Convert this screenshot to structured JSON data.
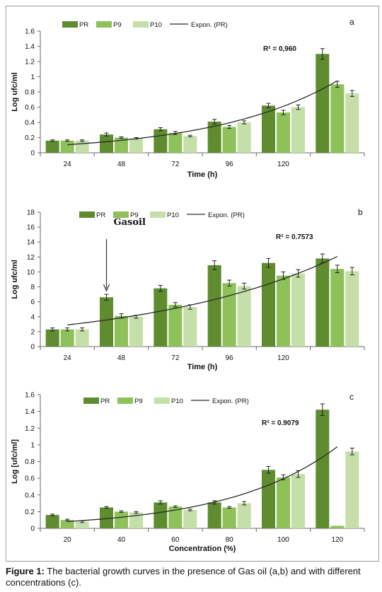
{
  "caption": {
    "label": "Figure 1:",
    "text": " The bacterial growth curves in the presence of Gas oil (a,b) and with different concentrations (c)."
  },
  "colors": {
    "PR": "#5e8c2e",
    "P9": "#8fc15a",
    "P10": "#c6dfa8",
    "trend": "#2b2b2b",
    "axis": "#6a6a6a"
  },
  "chart_data": [
    {
      "type": "bar",
      "panel": "a",
      "xlabel": "Time  (h)",
      "ylabel": "Log ufc/ml",
      "ylim": [
        0,
        1.6
      ],
      "yticks": [
        "0",
        "0.2",
        "0.4",
        "0.6",
        "0.8",
        "1",
        "1.2",
        "1.4",
        "1.6"
      ],
      "categories": [
        "24",
        "48",
        "72",
        "96",
        "120",
        ""
      ],
      "legend": [
        "PR",
        "P9",
        "P10",
        "Expon.  (PR)"
      ],
      "legend_position": "top",
      "series": [
        {
          "name": "PR",
          "values": [
            0.16,
            0.24,
            0.31,
            0.41,
            0.62,
            1.3
          ],
          "errors": [
            0.01,
            0.02,
            0.02,
            0.03,
            0.03,
            0.07
          ]
        },
        {
          "name": "P9",
          "values": [
            0.16,
            0.2,
            0.26,
            0.34,
            0.53,
            0.9
          ],
          "errors": [
            0.01,
            0.01,
            0.02,
            0.02,
            0.03,
            0.04
          ]
        },
        {
          "name": "P10",
          "values": [
            0.16,
            0.19,
            0.22,
            0.4,
            0.6,
            0.78
          ],
          "errors": [
            0.01,
            0.01,
            0.01,
            0.02,
            0.03,
            0.04
          ]
        }
      ],
      "trendline": {
        "type": "exponential",
        "series": "Expon.  (PR)",
        "r2_label": "R² = 0,960",
        "a": 0.106,
        "b": 0.438
      },
      "annotations": []
    },
    {
      "type": "bar",
      "panel": "b",
      "xlabel": "Time  (h)",
      "ylabel": "Log ufc/ml",
      "ylim": [
        0,
        18
      ],
      "yticks": [
        "0",
        "2",
        "4",
        "6",
        "8",
        "10",
        "12",
        "14",
        "16",
        "18"
      ],
      "categories": [
        "24",
        "48",
        "72",
        "96",
        "120",
        ""
      ],
      "legend": [
        "PR",
        "P9",
        "P10",
        "Expon.  (PR)"
      ],
      "legend_position": "top",
      "series": [
        {
          "name": "PR",
          "values": [
            2.3,
            6.6,
            7.8,
            10.9,
            11.2,
            11.8
          ],
          "errors": [
            0.2,
            0.4,
            0.4,
            0.6,
            0.6,
            0.6
          ]
        },
        {
          "name": "P9",
          "values": [
            2.3,
            4.1,
            5.6,
            8.5,
            9.5,
            10.4
          ],
          "errors": [
            0.2,
            0.3,
            0.3,
            0.4,
            0.5,
            0.5
          ]
        },
        {
          "name": "P10",
          "values": [
            2.3,
            4.0,
            5.3,
            8.1,
            9.8,
            10.1
          ],
          "errors": [
            0.2,
            0.2,
            0.3,
            0.4,
            0.5,
            0.5
          ]
        }
      ],
      "trendline": {
        "type": "exponential",
        "series": "Expon.  (PR)",
        "r2_label": "R² = 0.7573",
        "a": 2.9,
        "b": 0.285
      },
      "annotations": [
        {
          "text": "Gasoil",
          "category": 1,
          "arrow": true
        }
      ]
    },
    {
      "type": "bar",
      "panel": "c",
      "xlabel": "Concentration (%)",
      "ylabel": "Log [ufc/ml]",
      "ylim": [
        0,
        1.6
      ],
      "yticks": [
        "0",
        "0.2",
        "0.4",
        "0.6",
        "0.8",
        "1",
        "1.2",
        "1.4",
        "1.6"
      ],
      "categories": [
        "20",
        "40",
        "60",
        "80",
        "100",
        "120"
      ],
      "legend": [
        "PR",
        "P9",
        "P10",
        "Expon.  (PR)"
      ],
      "legend_position": "top",
      "series": [
        {
          "name": "PR",
          "values": [
            0.16,
            0.25,
            0.31,
            0.31,
            0.7,
            1.42
          ],
          "errors": [
            0.01,
            0.01,
            0.02,
            0.02,
            0.04,
            0.07
          ]
        },
        {
          "name": "P9",
          "values": [
            0.1,
            0.2,
            0.26,
            0.25,
            0.61,
            0.03
          ],
          "errors": [
            0.01,
            0.01,
            0.01,
            0.01,
            0.03,
            0.0
          ]
        },
        {
          "name": "P10",
          "values": [
            0.08,
            0.19,
            0.22,
            0.3,
            0.65,
            0.92
          ],
          "errors": [
            0.01,
            0.01,
            0.01,
            0.02,
            0.04,
            0.04
          ]
        }
      ],
      "trendline": {
        "type": "exponential",
        "series": "Expon.  (PR)",
        "r2_label": "R² = 0.9079",
        "a": 0.081,
        "b": 0.498
      },
      "annotations": []
    }
  ]
}
